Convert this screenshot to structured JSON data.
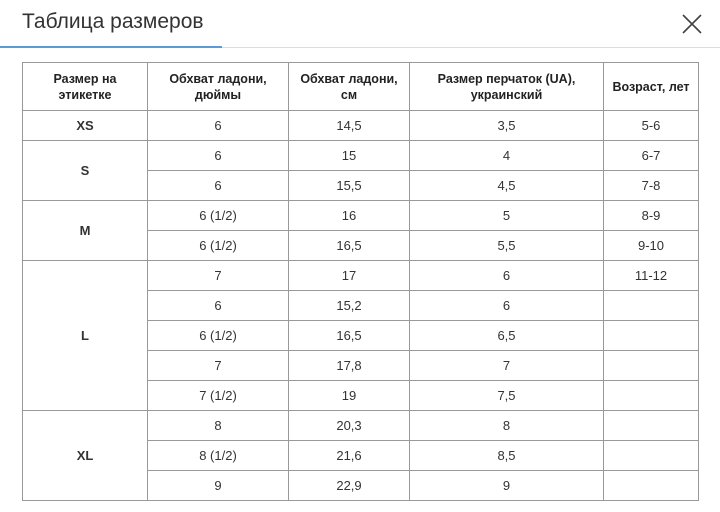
{
  "header": {
    "title": "Таблица размеров"
  },
  "table": {
    "columns": [
      "Размер на этикетке",
      "Обхват ладони, дюймы",
      "Обхват ладони, см",
      "Размер перчаток (UA), украинский",
      "Возраст, лет"
    ],
    "groups": [
      {
        "size": "XS",
        "rows": [
          [
            "6",
            "14,5",
            "3,5",
            "5-6"
          ]
        ]
      },
      {
        "size": "S",
        "rows": [
          [
            "6",
            "15",
            "4",
            "6-7"
          ],
          [
            "6",
            "15,5",
            "4,5",
            "7-8"
          ]
        ]
      },
      {
        "size": "M",
        "rows": [
          [
            "6 (1/2)",
            "16",
            "5",
            "8-9"
          ],
          [
            "6 (1/2)",
            "16,5",
            "5,5",
            "9-10"
          ]
        ]
      },
      {
        "size": "L",
        "rows": [
          [
            "7",
            "17",
            "6",
            "11-12"
          ],
          [
            "6",
            "15,2",
            "6"
          ],
          [
            "6 (1/2)",
            "16,5",
            "6,5"
          ],
          [
            "7",
            "17,8",
            "7"
          ],
          [
            "7 (1/2)",
            "19",
            "7,5"
          ]
        ]
      },
      {
        "size": "XL",
        "rows": [
          [
            "8",
            "20,3",
            "8"
          ],
          [
            "8 (1/2)",
            "21,6",
            "8,5"
          ],
          [
            "9",
            "22,9",
            "9"
          ]
        ]
      }
    ]
  }
}
